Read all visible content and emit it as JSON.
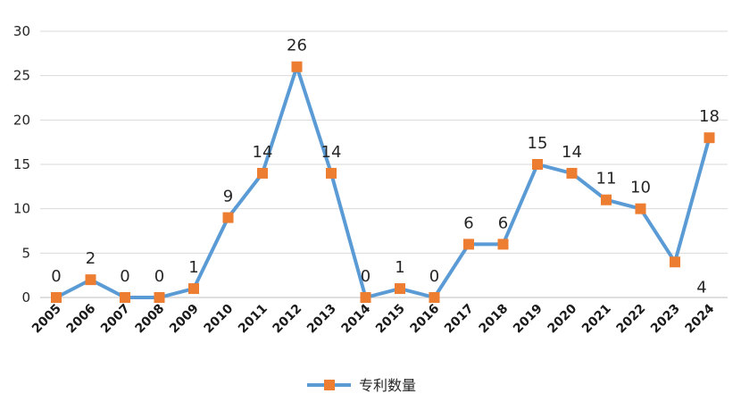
{
  "chart_data": {
    "type": "line",
    "categories": [
      "2005",
      "2006",
      "2007",
      "2008",
      "2009",
      "2010",
      "2011",
      "2012",
      "2013",
      "2014",
      "2015",
      "2016",
      "2017",
      "2018",
      "2019",
      "2020",
      "2021",
      "2022",
      "2023",
      "2024"
    ],
    "series": [
      {
        "name": "专利数量",
        "values": [
          0,
          2,
          0,
          0,
          1,
          9,
          14,
          26,
          14,
          0,
          1,
          0,
          6,
          6,
          15,
          14,
          11,
          10,
          4,
          18
        ],
        "line_color": "#5b9bd5",
        "marker_color": "#ed7d31"
      }
    ],
    "ylim": [
      0,
      30
    ],
    "yticks": [
      0,
      5,
      10,
      15,
      20,
      25,
      30
    ],
    "grid": true,
    "legend": "bottom"
  }
}
